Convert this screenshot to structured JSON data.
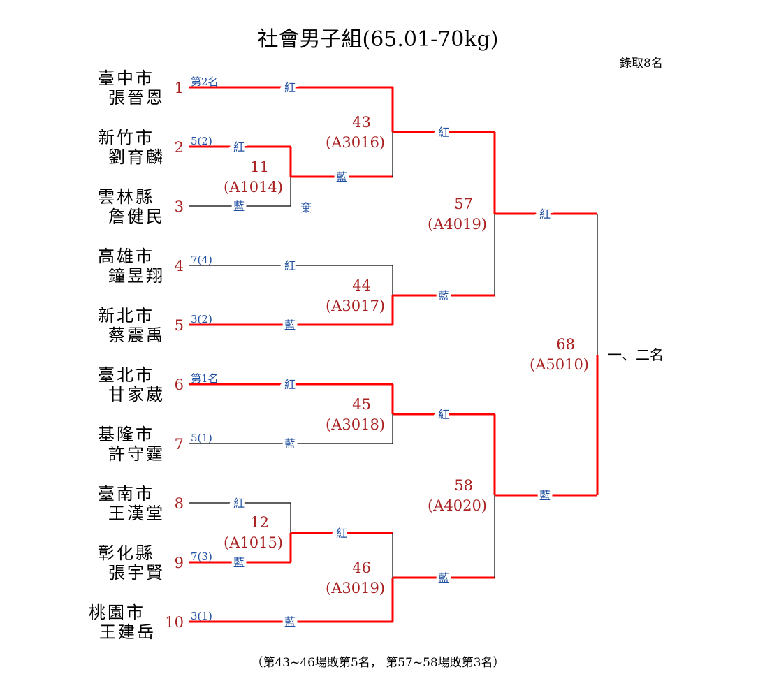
{
  "title": "社會男子組(65.01-70kg)",
  "quota": "錄取8名",
  "footer": "（第43~46場敗第5名， 第57~58場敗第3名）",
  "final_label": "一、二名",
  "forfeit_label": "棄",
  "red_label": "紅",
  "blue_label": "藍",
  "colors": {
    "win_line": "#ff0000",
    "line": "#000000",
    "number": "#a82020",
    "side_label": "#1f4fa0"
  },
  "entries": [
    {
      "no": "1",
      "city": "臺中市",
      "name": "張晉恩",
      "note": "第2名"
    },
    {
      "no": "2",
      "city": "新竹市",
      "name": "劉育麟",
      "note": "5(2)"
    },
    {
      "no": "3",
      "city": "雲林縣",
      "name": "詹健民",
      "note": ""
    },
    {
      "no": "4",
      "city": "高雄市",
      "name": "鐘昱翔",
      "note": "7(4)"
    },
    {
      "no": "5",
      "city": "新北市",
      "name": "蔡震禹",
      "note": "3(2)"
    },
    {
      "no": "6",
      "city": "臺北市",
      "name": "甘家葳",
      "note": "第1名"
    },
    {
      "no": "7",
      "city": "基隆市",
      "name": "許守霆",
      "note": "5(1)"
    },
    {
      "no": "8",
      "city": "臺南市",
      "name": "王漢堂",
      "note": ""
    },
    {
      "no": "9",
      "city": "彰化縣",
      "name": "張宇賢",
      "note": "7(3)"
    },
    {
      "no": "10",
      "city": "桃園市",
      "name": "王建岳",
      "note": "3(1)"
    }
  ],
  "matches": [
    {
      "no": "11",
      "code": "(A1014)",
      "winner": "red",
      "note": "棄"
    },
    {
      "no": "43",
      "code": "(A3016)",
      "winner": "red"
    },
    {
      "no": "44",
      "code": "(A3017)",
      "winner": "blue"
    },
    {
      "no": "57",
      "code": "(A4019)",
      "winner": "red"
    },
    {
      "no": "45",
      "code": "(A3018)",
      "winner": "red"
    },
    {
      "no": "12",
      "code": "(A1015)",
      "winner": "blue"
    },
    {
      "no": "46",
      "code": "(A3019)",
      "winner": "blue"
    },
    {
      "no": "58",
      "code": "(A4020)",
      "winner": "red"
    },
    {
      "no": "68",
      "code": "(A5010)",
      "winner": "blue"
    }
  ]
}
